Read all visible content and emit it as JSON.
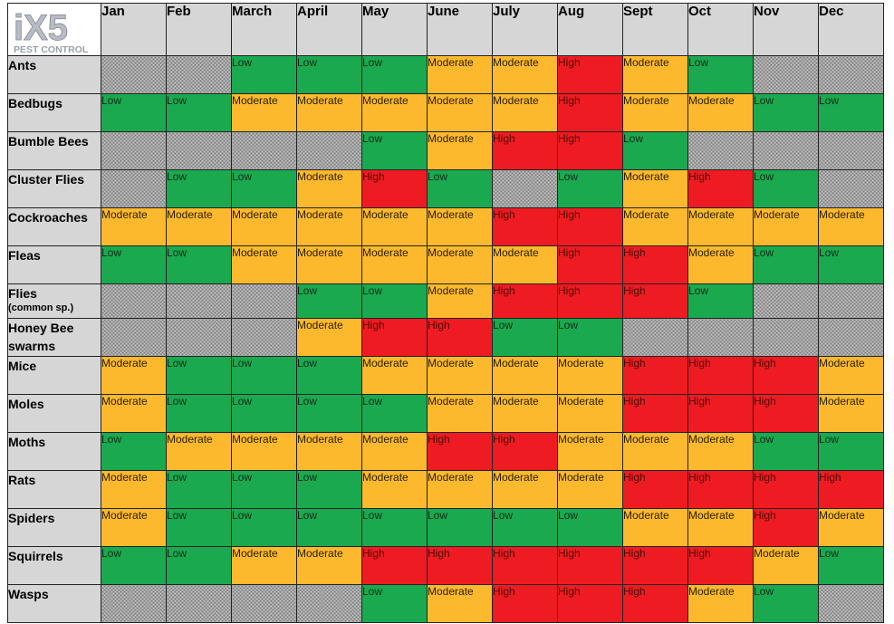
{
  "logo": {
    "brand": "iX5",
    "tagline": "PEST CONTROL"
  },
  "months": [
    "Jan",
    "Feb",
    "March",
    "April",
    "May",
    "June",
    "July",
    "Aug",
    "Sept",
    "Oct",
    "Nov",
    "Dec"
  ],
  "colors": {
    "low": "#1aa94f",
    "moderate": "#fdb92e",
    "high": "#ee1b23",
    "none": "#c8c8c8",
    "header": "#d6d6d6"
  },
  "rows": [
    {
      "pest": "Ants",
      "sub": "",
      "cells": [
        "",
        "",
        "Low",
        "Low",
        "Low",
        "Moderate",
        "Moderate",
        "High",
        "Moderate",
        "Low",
        "",
        ""
      ]
    },
    {
      "pest": "Bedbugs",
      "sub": "",
      "cells": [
        "Low",
        "Low",
        "Moderate",
        "Moderate",
        "Moderate",
        "Moderate",
        "Moderate",
        "High",
        "Moderate",
        "Moderate",
        "Low",
        "Low"
      ]
    },
    {
      "pest": "Bumble Bees",
      "sub": "",
      "cells": [
        "",
        "",
        "",
        "",
        "Low",
        "Moderate",
        "High",
        "High",
        "Low",
        "",
        "",
        ""
      ]
    },
    {
      "pest": "Cluster Flies",
      "sub": "",
      "cells": [
        "",
        "Low",
        "Low",
        "Moderate",
        "High",
        "Low",
        "",
        "Low",
        "Moderate",
        "High",
        "Low",
        ""
      ]
    },
    {
      "pest": "Cockroaches",
      "sub": "",
      "cells": [
        "Moderate",
        "Moderate",
        "Moderate",
        "Moderate",
        "Moderate",
        "Moderate",
        "High",
        "High",
        "Moderate",
        "Moderate",
        "Moderate",
        "Moderate"
      ]
    },
    {
      "pest": "Fleas",
      "sub": "",
      "cells": [
        "Low",
        "Low",
        "Moderate",
        "Moderate",
        "Moderate",
        "Moderate",
        "Moderate",
        "High",
        "High",
        "Moderate",
        "Low",
        "Low"
      ]
    },
    {
      "pest": "Flies",
      "sub": "(common sp.)",
      "cells": [
        "",
        "",
        "",
        "Low",
        "Low",
        "Moderate",
        "High",
        "High",
        "High",
        "Low",
        "",
        ""
      ]
    },
    {
      "pest": "Honey Bee swarms",
      "sub": "",
      "cells": [
        "",
        "",
        "",
        "Moderate",
        "High",
        "High",
        "Low",
        "Low",
        "",
        "",
        "",
        ""
      ]
    },
    {
      "pest": "Mice",
      "sub": "",
      "cells": [
        "Moderate",
        "Low",
        "Low",
        "Low",
        "Moderate",
        "Moderate",
        "Moderate",
        "Moderate",
        "High",
        "High",
        "High",
        "Moderate"
      ]
    },
    {
      "pest": "Moles",
      "sub": "",
      "cells": [
        "Moderate",
        "Low",
        "Low",
        "Low",
        "Low",
        "Moderate",
        "Moderate",
        "Moderate",
        "High",
        "High",
        "High",
        "Moderate"
      ]
    },
    {
      "pest": "Moths",
      "sub": "",
      "cells": [
        "Low",
        "Moderate",
        "Moderate",
        "Moderate",
        "Moderate",
        "High",
        "High",
        "Moderate",
        "Moderate",
        "Moderate",
        "Low",
        "Low"
      ]
    },
    {
      "pest": "Rats",
      "sub": "",
      "cells": [
        "Moderate",
        "Low",
        "Low",
        "Low",
        "Moderate",
        "Moderate",
        "Moderate",
        "Moderate",
        "High",
        "High",
        "High",
        "High"
      ]
    },
    {
      "pest": "Spiders",
      "sub": "",
      "cells": [
        "Moderate",
        "Low",
        "Low",
        "Low",
        "Low",
        "Low",
        "Low",
        "Low",
        "Moderate",
        "Moderate",
        "High",
        "Moderate"
      ]
    },
    {
      "pest": "Squirrels",
      "sub": "",
      "cells": [
        "Low",
        "Low",
        "Moderate",
        "Moderate",
        "High",
        "High",
        "High",
        "High",
        "High",
        "High",
        "Moderate",
        "Low"
      ]
    },
    {
      "pest": "Wasps",
      "sub": "",
      "cells": [
        "",
        "",
        "",
        "",
        "Low",
        "Moderate",
        "High",
        "High",
        "High",
        "Moderate",
        "Low",
        ""
      ]
    }
  ]
}
